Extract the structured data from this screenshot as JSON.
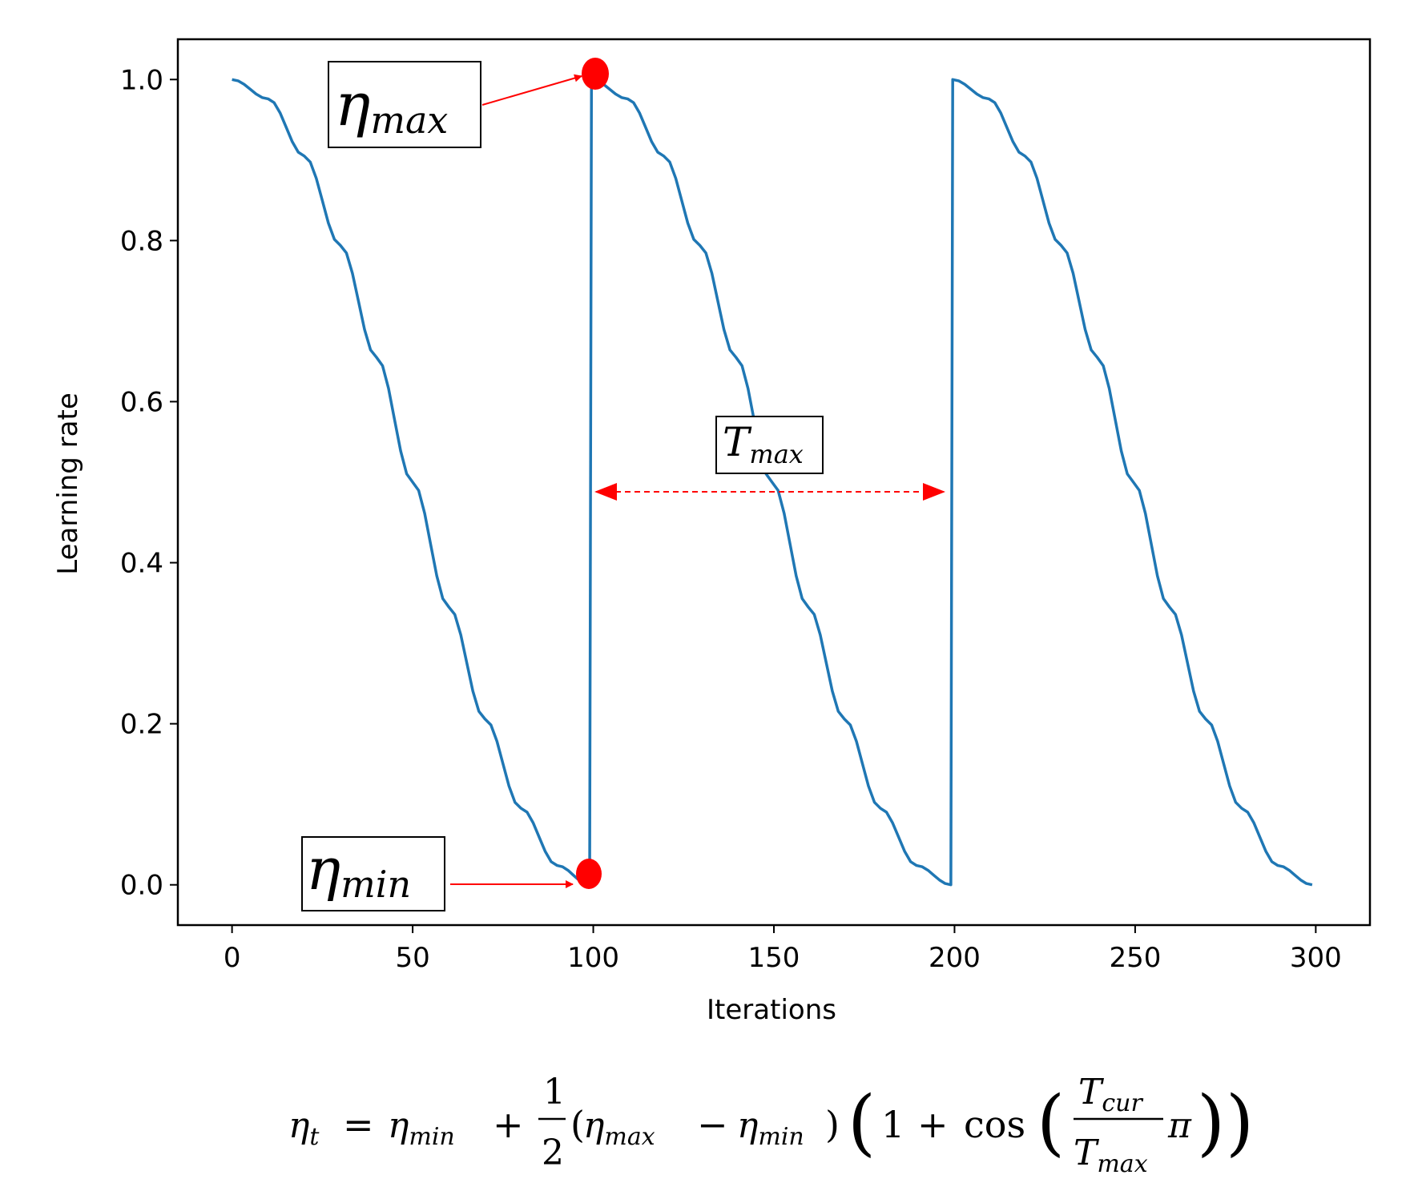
{
  "chart_data": {
    "type": "line",
    "xlabel": "Iterations",
    "ylabel": "Learning rate",
    "xlim": [
      -15,
      315
    ],
    "ylim": [
      -0.05,
      1.05
    ],
    "xticks": [
      0,
      50,
      100,
      150,
      200,
      250,
      300
    ],
    "xtick_labels": [
      "0",
      "50",
      "100",
      "150",
      "200",
      "250",
      "300"
    ],
    "yticks": [
      0.0,
      0.2,
      0.4,
      0.6,
      0.8,
      1.0
    ],
    "ytick_labels": [
      "0.0",
      "0.2",
      "0.4",
      "0.6",
      "0.8",
      "1.0"
    ],
    "grid": false,
    "series": [
      {
        "color": "#1f77b4",
        "x": [
          0,
          10,
          20,
          30,
          40,
          50,
          60,
          70,
          80,
          90,
          99,
          99.5,
          109.5,
          119.5,
          129.5,
          139.5,
          149.5,
          159.5,
          169.5,
          179.5,
          189.5,
          199,
          199.5,
          209.5,
          219.5,
          229.5,
          239.5,
          249.5,
          259.5,
          269.5,
          279.5,
          289.5,
          299
        ],
        "y": [
          1.0,
          0.976,
          0.905,
          0.794,
          0.655,
          0.5,
          0.345,
          0.206,
          0.095,
          0.024,
          0.0,
          1.0,
          0.976,
          0.905,
          0.794,
          0.655,
          0.5,
          0.345,
          0.206,
          0.095,
          0.024,
          0.0,
          1.0,
          0.976,
          0.905,
          0.794,
          0.655,
          0.5,
          0.345,
          0.206,
          0.095,
          0.024,
          0.0
        ]
      }
    ],
    "annotations": [
      {
        "label": "η_max",
        "color": "#ff0000"
      },
      {
        "label": "η_min",
        "color": "#ff0000"
      },
      {
        "label": "T_max",
        "color": "#ff0000"
      }
    ]
  },
  "formula": {
    "lhs_eta": "η",
    "lhs_sub": "t",
    "eq": "=",
    "eta": "η",
    "sub_min": "min",
    "sub_max": "max",
    "plus": "+",
    "minus": "−",
    "one_num": "1",
    "two_den": "2",
    "one": "1",
    "cos": "cos",
    "T": "T",
    "sub_cur": "cur",
    "pi": "π"
  },
  "colors": {
    "line": "#1f77b4",
    "annotation": "#ff0000"
  }
}
